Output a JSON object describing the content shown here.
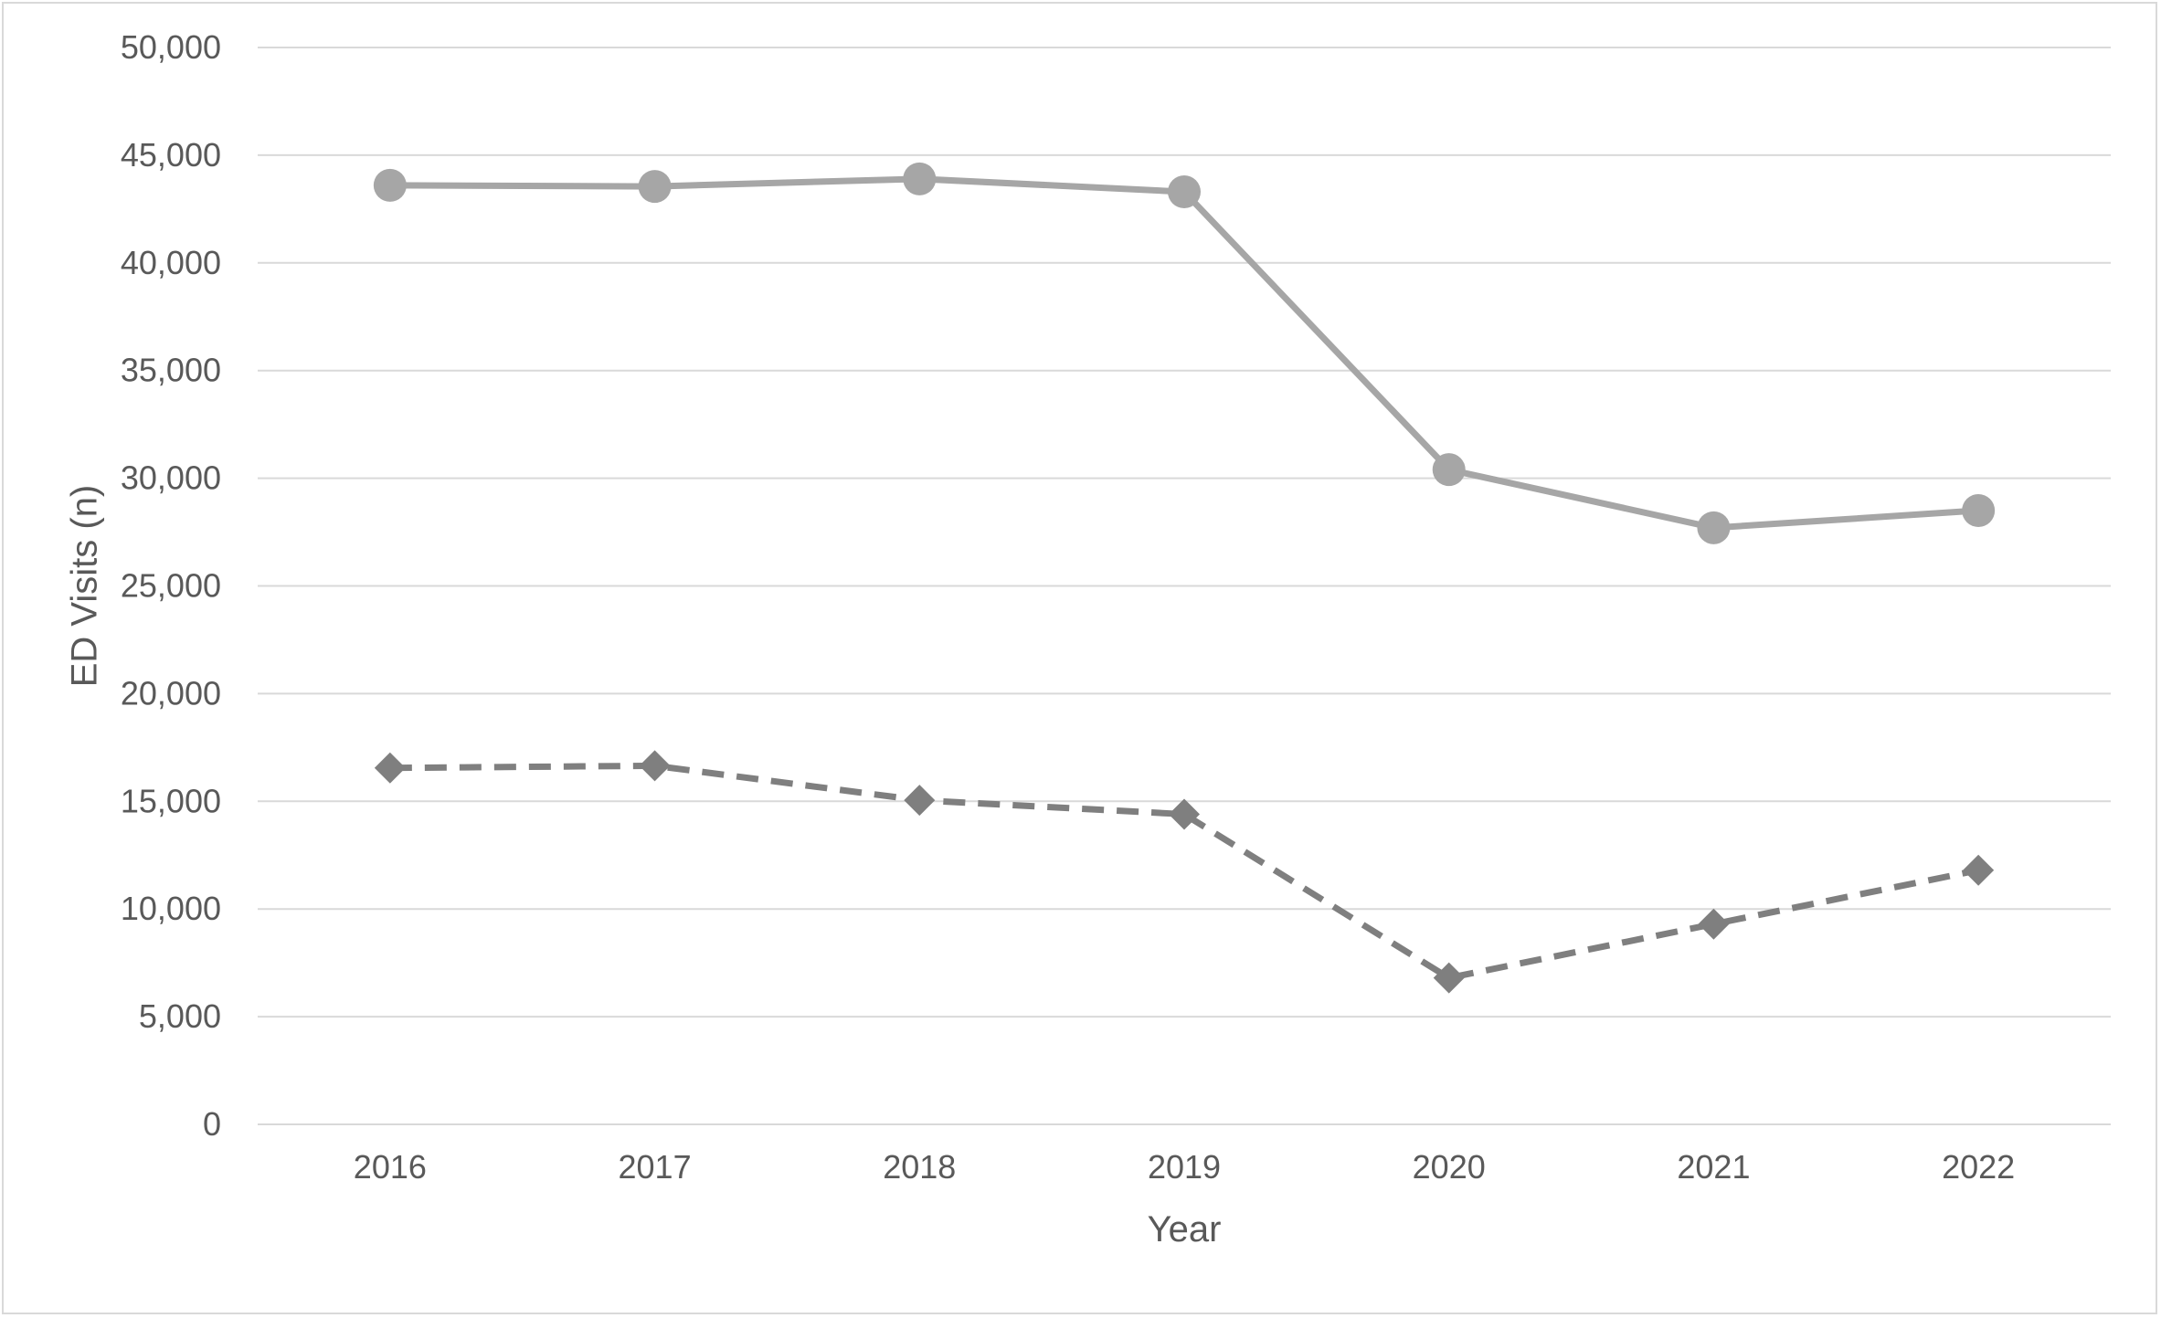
{
  "chart_data": {
    "type": "line",
    "title": "",
    "xlabel": "Year",
    "ylabel": "ED Visits (n)",
    "categories": [
      "2016",
      "2017",
      "2018",
      "2019",
      "2020",
      "2021",
      "2022"
    ],
    "ylim": [
      0,
      50000
    ],
    "y_ticks": [
      0,
      5000,
      10000,
      15000,
      20000,
      25000,
      30000,
      35000,
      40000,
      45000,
      50000
    ],
    "y_tick_labels": [
      "0",
      "5,000",
      "10,000",
      "15,000",
      "20,000",
      "25,000",
      "30,000",
      "35,000",
      "40,000",
      "45,000",
      "50,000"
    ],
    "grid": true,
    "legend": "none",
    "series": [
      {
        "values": [
          43600,
          43550,
          43900,
          43300,
          30400,
          27700,
          28500
        ],
        "color": "#a6a6a6",
        "line_style": "solid",
        "marker": "circle"
      },
      {
        "values": [
          16550,
          16650,
          15050,
          14400,
          6800,
          9300,
          11800
        ],
        "color": "#7f7f7f",
        "line_style": "dashed",
        "marker": "diamond"
      }
    ],
    "colors": {
      "gridline": "#d9d9d9",
      "text": "#595959",
      "frame": "#d9d9d9"
    }
  }
}
